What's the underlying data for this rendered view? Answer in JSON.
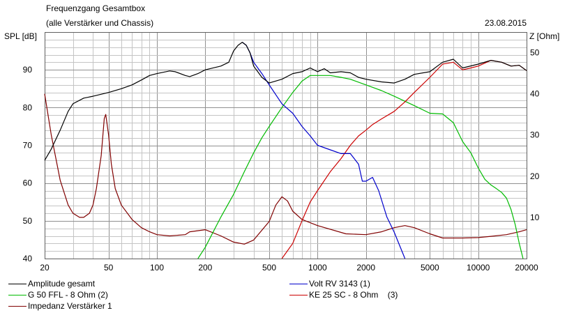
{
  "header": {
    "title": "Frequenzgang Gesamtbox",
    "subtitle": "(alle Verstärker und Chassis)",
    "date": "23.08.2015"
  },
  "chart_data": {
    "type": "line",
    "xscale": "log",
    "xlim": [
      20,
      20000
    ],
    "ylim": [
      40,
      100
    ],
    "y2lim": [
      0,
      55
    ],
    "ylabel": "SPL [dB]",
    "y2label": "Z [Ohm]",
    "grid": true,
    "x_tick_labels": [
      "20",
      "50",
      "100",
      "200",
      "500",
      "1000",
      "2000",
      "5000",
      "10000",
      "20000"
    ],
    "x_tick_values": [
      20,
      50,
      100,
      200,
      500,
      1000,
      2000,
      5000,
      10000,
      20000
    ],
    "y_tick_labels": [
      "40",
      "50",
      "60",
      "70",
      "80",
      "90"
    ],
    "y_tick_values": [
      40,
      50,
      60,
      70,
      80,
      90
    ],
    "y2_tick_labels": [
      "10",
      "20",
      "30",
      "40",
      "50"
    ],
    "y2_tick_values": [
      10,
      20,
      30,
      40,
      50
    ],
    "legend_position": "bottom",
    "series": [
      {
        "name": "Amplitude gesamt",
        "color": "#000000",
        "axis": "left",
        "points": [
          [
            20,
            66
          ],
          [
            22,
            69
          ],
          [
            25,
            74
          ],
          [
            28,
            79
          ],
          [
            30,
            81
          ],
          [
            35,
            82.5
          ],
          [
            40,
            83
          ],
          [
            50,
            84
          ],
          [
            60,
            85
          ],
          [
            70,
            86
          ],
          [
            80,
            87.3
          ],
          [
            90,
            88.5
          ],
          [
            100,
            89
          ],
          [
            120,
            89.7
          ],
          [
            130,
            89.5
          ],
          [
            150,
            88.5
          ],
          [
            160,
            88.2
          ],
          [
            180,
            89
          ],
          [
            200,
            90
          ],
          [
            250,
            91
          ],
          [
            280,
            92
          ],
          [
            300,
            95
          ],
          [
            320,
            96.5
          ],
          [
            340,
            97.3
          ],
          [
            360,
            96.5
          ],
          [
            380,
            94.5
          ],
          [
            400,
            91
          ],
          [
            450,
            88
          ],
          [
            500,
            86.5
          ],
          [
            600,
            87.5
          ],
          [
            700,
            89
          ],
          [
            800,
            89.5
          ],
          [
            900,
            90.5
          ],
          [
            1000,
            89.5
          ],
          [
            1100,
            90.3
          ],
          [
            1200,
            89.2
          ],
          [
            1400,
            89.5
          ],
          [
            1600,
            89.2
          ],
          [
            1800,
            88
          ],
          [
            2000,
            87.5
          ],
          [
            2500,
            86.8
          ],
          [
            3000,
            86.5
          ],
          [
            3500,
            87.5
          ],
          [
            4000,
            88.8
          ],
          [
            5000,
            89.5
          ],
          [
            6000,
            92
          ],
          [
            7000,
            92.8
          ],
          [
            8000,
            90.5
          ],
          [
            10000,
            91.5
          ],
          [
            12000,
            92.5
          ],
          [
            14000,
            92
          ],
          [
            16000,
            91
          ],
          [
            18000,
            91.2
          ],
          [
            20000,
            89.8
          ]
        ]
      },
      {
        "name": "Volt RV 3143 (1)",
        "color": "#0000cc",
        "axis": "left",
        "points": [
          [
            340,
            97.3
          ],
          [
            360,
            96.5
          ],
          [
            380,
            94.5
          ],
          [
            400,
            92
          ],
          [
            450,
            89
          ],
          [
            500,
            86
          ],
          [
            600,
            81
          ],
          [
            700,
            78.5
          ],
          [
            800,
            75
          ],
          [
            900,
            72.5
          ],
          [
            1000,
            70
          ],
          [
            1200,
            68.8
          ],
          [
            1400,
            67.8
          ],
          [
            1600,
            67.8
          ],
          [
            1800,
            65
          ],
          [
            1900,
            60.5
          ],
          [
            2000,
            60.5
          ],
          [
            2200,
            61.5
          ],
          [
            2400,
            58
          ],
          [
            2700,
            51
          ],
          [
            3000,
            47
          ],
          [
            3500,
            40
          ]
        ]
      },
      {
        "name": "G 50 FFL - 8 Ohm (2)",
        "color": "#00bb00",
        "axis": "left",
        "points": [
          [
            180,
            40
          ],
          [
            200,
            43
          ],
          [
            250,
            51
          ],
          [
            300,
            57
          ],
          [
            350,
            63
          ],
          [
            400,
            68
          ],
          [
            450,
            72
          ],
          [
            500,
            75
          ],
          [
            600,
            80
          ],
          [
            700,
            84
          ],
          [
            800,
            87
          ],
          [
            900,
            88.5
          ],
          [
            1000,
            88.5
          ],
          [
            1200,
            88.5
          ],
          [
            1400,
            88
          ],
          [
            1600,
            87.5
          ],
          [
            2000,
            86
          ],
          [
            2500,
            84.5
          ],
          [
            3000,
            83
          ],
          [
            4000,
            80.5
          ],
          [
            5000,
            78.5
          ],
          [
            6000,
            78.3
          ],
          [
            7000,
            76
          ],
          [
            8000,
            71
          ],
          [
            9000,
            68
          ],
          [
            10000,
            64
          ],
          [
            11000,
            61
          ],
          [
            12000,
            59.5
          ],
          [
            13000,
            58.5
          ],
          [
            14000,
            57.5
          ],
          [
            15000,
            56
          ],
          [
            16000,
            53
          ],
          [
            17000,
            49
          ],
          [
            18000,
            44
          ],
          [
            19000,
            40
          ]
        ]
      },
      {
        "name": "KE 25 SC - 8 Ohm    (3)",
        "color": "#cc0000",
        "axis": "left",
        "points": [
          [
            600,
            40
          ],
          [
            700,
            44
          ],
          [
            800,
            50
          ],
          [
            900,
            55
          ],
          [
            1000,
            58
          ],
          [
            1200,
            63
          ],
          [
            1400,
            66.5
          ],
          [
            1600,
            70
          ],
          [
            1800,
            72.5
          ],
          [
            2000,
            74
          ],
          [
            2200,
            75.5
          ],
          [
            2500,
            77
          ],
          [
            3000,
            79
          ],
          [
            3500,
            81.5
          ],
          [
            4000,
            84
          ],
          [
            5000,
            88
          ],
          [
            6000,
            91.5
          ],
          [
            7000,
            92
          ],
          [
            8000,
            90
          ],
          [
            9000,
            90.5
          ],
          [
            10000,
            91
          ],
          [
            12000,
            92.5
          ],
          [
            14000,
            92
          ],
          [
            16000,
            91
          ],
          [
            18000,
            91.2
          ],
          [
            20000,
            89.8
          ]
        ]
      },
      {
        "name": "Impedanz Verstärker 1",
        "color": "#800000",
        "axis": "right",
        "points": [
          [
            20,
            40
          ],
          [
            22,
            30
          ],
          [
            25,
            19
          ],
          [
            28,
            13
          ],
          [
            30,
            11
          ],
          [
            33,
            10
          ],
          [
            35,
            10
          ],
          [
            38,
            11
          ],
          [
            40,
            13
          ],
          [
            42,
            17
          ],
          [
            45,
            25
          ],
          [
            47,
            34
          ],
          [
            48,
            35
          ],
          [
            50,
            30
          ],
          [
            52,
            23
          ],
          [
            55,
            17
          ],
          [
            60,
            13
          ],
          [
            70,
            9.5
          ],
          [
            80,
            7.5
          ],
          [
            90,
            6.5
          ],
          [
            100,
            5.8
          ],
          [
            120,
            5.5
          ],
          [
            150,
            5.8
          ],
          [
            160,
            6.5
          ],
          [
            200,
            7
          ],
          [
            250,
            5.5
          ],
          [
            300,
            4
          ],
          [
            350,
            3.5
          ],
          [
            400,
            4.5
          ],
          [
            500,
            9
          ],
          [
            550,
            13
          ],
          [
            600,
            15
          ],
          [
            650,
            14
          ],
          [
            700,
            11.5
          ],
          [
            800,
            9.5
          ],
          [
            1000,
            8
          ],
          [
            1500,
            6
          ],
          [
            2000,
            5.8
          ],
          [
            2500,
            6.5
          ],
          [
            3000,
            7.5
          ],
          [
            3500,
            8
          ],
          [
            4000,
            7.5
          ],
          [
            5000,
            6
          ],
          [
            6000,
            5
          ],
          [
            8000,
            5
          ],
          [
            10000,
            5.1
          ],
          [
            12000,
            5.4
          ],
          [
            15000,
            5.8
          ],
          [
            18000,
            6.5
          ],
          [
            20000,
            7
          ]
        ]
      }
    ]
  }
}
